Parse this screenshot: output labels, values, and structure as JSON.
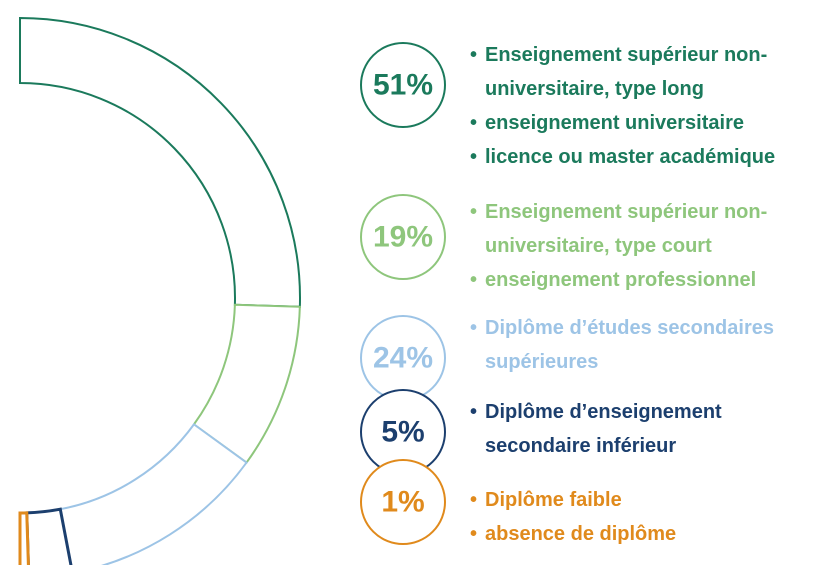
{
  "chart_data": {
    "type": "semi-donut",
    "categories": [
      [
        "Enseignement supérieur non-universitaire, type long",
        "enseignement universitaire",
        "licence ou master académique"
      ],
      [
        "Enseignement supérieur non-universitaire, type court",
        "enseignement professionnel"
      ],
      [
        "Diplôme d’études secondaires supérieures"
      ],
      [
        "Diplôme d’enseignement secondaire inférieur"
      ],
      [
        "Diplôme faible",
        "absence de diplôme"
      ]
    ],
    "values": [
      51,
      19,
      24,
      5,
      1
    ],
    "value_labels": [
      "51%",
      "19%",
      "24%",
      "5%",
      "1%"
    ],
    "colors": [
      "#1b7a5c",
      "#8ec67c",
      "#9dc4e6",
      "#1c3f6e",
      "#e08a1c"
    ]
  }
}
